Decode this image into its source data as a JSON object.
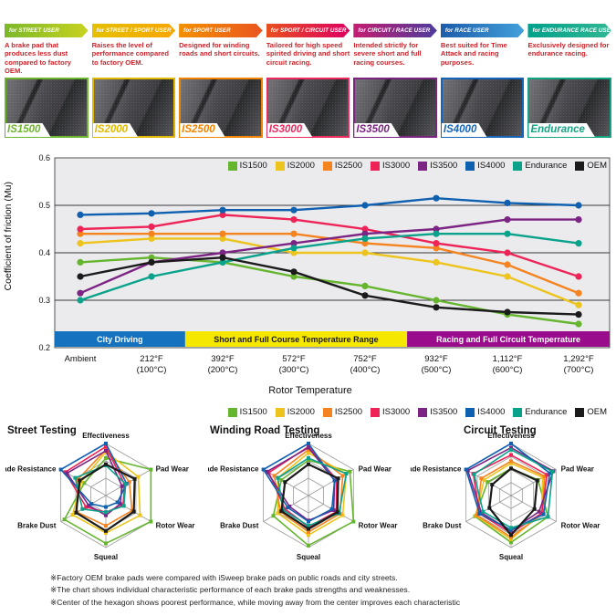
{
  "header": {
    "desc_color": "#c9252c",
    "products": [
      {
        "banner": "for STREET USER",
        "banner_from": "#7cb829",
        "banner_to": "#c8d220",
        "description": "A brake pad that produces less dust compared to factory OEM.",
        "name": "IS1500",
        "color": "#6db52c"
      },
      {
        "banner": "for STREET / SPORT USER",
        "banner_from": "#e5c000",
        "banner_to": "#f7a600",
        "description": "Raises the level of performance compared to factory OEM.",
        "name": "IS2000",
        "color": "#e3b800"
      },
      {
        "banner": "for SPORT USER",
        "banner_from": "#f39000",
        "banner_to": "#ea5520",
        "description": "Designed for winding roads and short circuits.",
        "name": "IS2500",
        "color": "#f08300"
      },
      {
        "banner": "for SPORT / CIRCUIT USER",
        "banner_from": "#e85020",
        "banner_to": "#dd0060",
        "description": "Tailored for high speed spirited driving and short circuit racing.",
        "name": "IS3000",
        "color": "#ec2a5e"
      },
      {
        "banner": "for CIRCUIT / RACE USER",
        "banner_from": "#c41d70",
        "banner_to": "#4d3a9c",
        "description": "Intended strictly for severe short and full racing courses.",
        "name": "IS3500",
        "color": "#7d2383"
      },
      {
        "banner": "for RACE USER",
        "banner_from": "#1c5cab",
        "banner_to": "#42a0da",
        "description": "Best suited for Time Attack and racing purposes.",
        "name": "IS4000",
        "color": "#1565bb"
      },
      {
        "banner": "for ENDURANCE RACE USER",
        "banner_from": "#00a18b",
        "banner_to": "#31b794",
        "description": "Exclusively designed for endurance racing.",
        "name": "Endurance",
        "color": "#14a383"
      }
    ]
  },
  "chart_data": [
    {
      "type": "line",
      "title": "",
      "xlabel": "Rotor Temperature",
      "ylabel": "Coefficient of friction (Mu)",
      "ylim": [
        0.2,
        0.6
      ],
      "yticks": [
        "0.2",
        "0.3",
        "0.4",
        "0.5",
        "0.6"
      ],
      "grid": true,
      "legend_position": "top",
      "plot_bg": "#ebebed",
      "x_labels": [
        [
          "Ambient",
          ""
        ],
        [
          "212°F",
          "(100°C)"
        ],
        [
          "392°F",
          "(200°C)"
        ],
        [
          "572°F",
          "(300°C)"
        ],
        [
          "752°F",
          "(400°C)"
        ],
        [
          "932°F",
          "(500°C)"
        ],
        [
          "1,112°F",
          "(600°C)"
        ],
        [
          "1,292°F",
          "(700°C)"
        ]
      ],
      "series": [
        {
          "name": "IS1500",
          "color": "#66b52f",
          "values": [
            0.38,
            0.39,
            0.38,
            0.35,
            0.33,
            0.3,
            0.27,
            0.25
          ]
        },
        {
          "name": "IS2000",
          "color": "#edc41e",
          "values": [
            0.42,
            0.43,
            0.43,
            0.4,
            0.4,
            0.38,
            0.35,
            0.29
          ]
        },
        {
          "name": "IS2500",
          "color": "#f5831f",
          "values": [
            0.44,
            0.44,
            0.44,
            0.44,
            0.42,
            0.41,
            0.375,
            0.315
          ]
        },
        {
          "name": "IS3000",
          "color": "#ee2458",
          "values": [
            0.45,
            0.455,
            0.48,
            0.47,
            0.45,
            0.42,
            0.4,
            0.35
          ]
        },
        {
          "name": "IS3500",
          "color": "#7c2484",
          "values": [
            0.315,
            0.38,
            0.4,
            0.42,
            0.44,
            0.45,
            0.47,
            0.47
          ]
        },
        {
          "name": "IS4000",
          "color": "#1060b0",
          "values": [
            0.48,
            0.483,
            0.49,
            0.49,
            0.5,
            0.515,
            0.505,
            0.5
          ]
        },
        {
          "name": "Endurance",
          "color": "#0aa28b",
          "values": [
            0.3,
            0.35,
            0.38,
            0.41,
            0.43,
            0.44,
            0.44,
            0.42
          ]
        },
        {
          "name": "OEM",
          "color": "#1b1b1b",
          "values": [
            0.35,
            0.38,
            0.39,
            0.36,
            0.31,
            0.285,
            0.275,
            0.27
          ]
        }
      ],
      "bands": [
        {
          "label": "City Driving",
          "color": "#1472bf",
          "text_color": "#ffffff",
          "span_frac": [
            0,
            0.235
          ]
        },
        {
          "label": "Short and Full Course Temperature Range",
          "color": "#f6e700",
          "text_color": "#1a1a1a",
          "span_frac": [
            0.235,
            0.635
          ]
        },
        {
          "label": "Racing and Full Circuit Temperrature",
          "color": "#990d8c",
          "text_color": "#ffffff",
          "span_frac": [
            0.635,
            1
          ]
        }
      ]
    },
    {
      "type": "radar",
      "title": "Street Testing",
      "axes": [
        "Effectiveness",
        "Pad Wear",
        "Rotor Wear",
        "Squeal",
        "Brake Dust",
        "Fade Resistance"
      ],
      "max": 5,
      "rings": 3,
      "series": [
        {
          "name": "IS1500",
          "color": "#66b52f",
          "values": [
            3.6,
            5.0,
            5.0,
            4.6,
            4.6,
            2.4
          ]
        },
        {
          "name": "IS2000",
          "color": "#edc41e",
          "values": [
            4.2,
            3.6,
            3.8,
            3.6,
            3.7,
            2.7
          ]
        },
        {
          "name": "IS2500",
          "color": "#f5831f",
          "values": [
            4.4,
            2.6,
            2.9,
            2.9,
            3.2,
            3.1
          ]
        },
        {
          "name": "IS3000",
          "color": "#ee2458",
          "values": [
            4.7,
            2.1,
            1.9,
            1.6,
            2.2,
            4.5
          ]
        },
        {
          "name": "IS3500",
          "color": "#7c2484",
          "values": [
            4.3,
            1.8,
            1.6,
            1.9,
            1.9,
            4.3
          ]
        },
        {
          "name": "IS4000",
          "color": "#1060b0",
          "values": [
            5.0,
            2.3,
            1.3,
            1.1,
            1.6,
            5.0
          ]
        },
        {
          "name": "Endurance",
          "color": "#0aa28b",
          "values": [
            2.9,
            2.2,
            2.0,
            1.6,
            2.6,
            3.4
          ]
        },
        {
          "name": "OEM",
          "color": "#1b1b1b",
          "values": [
            3.0,
            3.2,
            3.1,
            3.4,
            3.3,
            2.9
          ]
        }
      ]
    },
    {
      "type": "radar",
      "title": "Winding Road Testing",
      "axes": [
        "Effectiveness",
        "Pad Wear",
        "Rotor Wear",
        "Squeal",
        "Brake Dust",
        "Fade Resistance"
      ],
      "max": 5,
      "rings": 3,
      "series": [
        {
          "name": "IS1500",
          "color": "#66b52f",
          "values": [
            3.4,
            4.6,
            5.0,
            4.8,
            3.9,
            3.0
          ]
        },
        {
          "name": "IS2000",
          "color": "#edc41e",
          "values": [
            4.1,
            4.2,
            3.8,
            3.8,
            3.4,
            3.4
          ]
        },
        {
          "name": "IS2500",
          "color": "#f5831f",
          "values": [
            4.4,
            3.8,
            3.5,
            3.5,
            3.1,
            3.8
          ]
        },
        {
          "name": "IS3000",
          "color": "#ee2458",
          "values": [
            4.7,
            3.1,
            3.1,
            3.0,
            2.6,
            4.4
          ]
        },
        {
          "name": "IS3500",
          "color": "#7c2484",
          "values": [
            4.6,
            2.9,
            2.8,
            2.4,
            2.1,
            4.6
          ]
        },
        {
          "name": "IS4000",
          "color": "#1060b0",
          "values": [
            5.0,
            2.9,
            2.6,
            2.5,
            2.3,
            5.0
          ]
        },
        {
          "name": "Endurance",
          "color": "#0aa28b",
          "values": [
            3.6,
            4.2,
            3.4,
            2.9,
            2.8,
            3.4
          ]
        },
        {
          "name": "OEM",
          "color": "#1b1b1b",
          "values": [
            3.0,
            3.3,
            3.2,
            3.2,
            3.0,
            2.6
          ]
        }
      ]
    },
    {
      "type": "radar",
      "title": "Circuit Testing",
      "axes": [
        "Effectiveness",
        "Pad Wear",
        "Rotor Wear",
        "Squeal",
        "Brake Dust",
        "Fade Resistance"
      ],
      "max": 5,
      "rings": 4,
      "series": [
        {
          "name": "IS1500",
          "color": "#66b52f",
          "values": [
            2.6,
            3.0,
            4.1,
            4.5,
            4.0,
            2.6
          ]
        },
        {
          "name": "IS2000",
          "color": "#edc41e",
          "values": [
            3.1,
            3.5,
            3.4,
            4.2,
            3.9,
            3.0
          ]
        },
        {
          "name": "IS2500",
          "color": "#f5831f",
          "values": [
            3.3,
            3.7,
            3.5,
            4.0,
            3.8,
            3.3
          ]
        },
        {
          "name": "IS3000",
          "color": "#ee2458",
          "values": [
            3.9,
            4.0,
            3.4,
            3.6,
            3.5,
            4.2
          ]
        },
        {
          "name": "IS3500",
          "color": "#7c2484",
          "values": [
            4.6,
            4.7,
            3.1,
            3.4,
            3.3,
            4.8
          ]
        },
        {
          "name": "IS4000",
          "color": "#1060b0",
          "values": [
            5.0,
            4.3,
            3.6,
            3.3,
            3.5,
            5.0
          ]
        },
        {
          "name": "Endurance",
          "color": "#0aa28b",
          "values": [
            4.4,
            4.6,
            4.1,
            3.1,
            3.1,
            4.1
          ]
        },
        {
          "name": "OEM",
          "color": "#1b1b1b",
          "values": [
            2.6,
            2.9,
            2.6,
            3.8,
            2.4,
            2.1
          ]
        }
      ]
    }
  ],
  "notes": [
    "※Factory OEM brake pads were compared with iSweep brake pads on public roads and city streets.",
    "※The chart shows individual characteristic performance of each brake pads strengths and weaknesses.",
    "※Center of the hexagon shows poorest performance, while moving away from the center improves each characteristic"
  ]
}
